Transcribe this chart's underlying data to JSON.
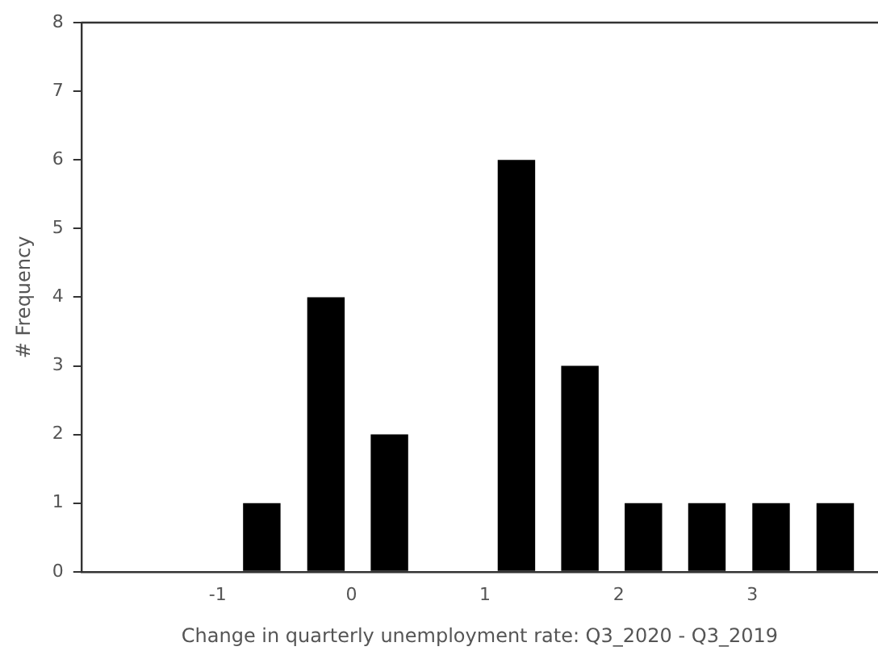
{
  "chart_data": {
    "type": "histogram",
    "xlabel": "Change in quarterly unemployment rate: Q3_2020 - Q3_2019",
    "ylabel": "# Frequency",
    "bins": [
      -0.91,
      -0.43,
      0.05,
      0.52,
      1.0,
      1.47,
      1.95,
      2.42,
      2.9,
      3.38,
      3.86
    ],
    "values": [
      1,
      4,
      2,
      0,
      6,
      3,
      1,
      1,
      1,
      1
    ],
    "color": "#000000",
    "xlim": [
      -2.02,
      3.94
    ],
    "xticks": [
      -1,
      0,
      1,
      2,
      3
    ],
    "ylim": [
      0,
      8
    ],
    "yticks": [
      0,
      1,
      2,
      3,
      4,
      5,
      6,
      7,
      8
    ],
    "grid": false,
    "legend": false
  }
}
